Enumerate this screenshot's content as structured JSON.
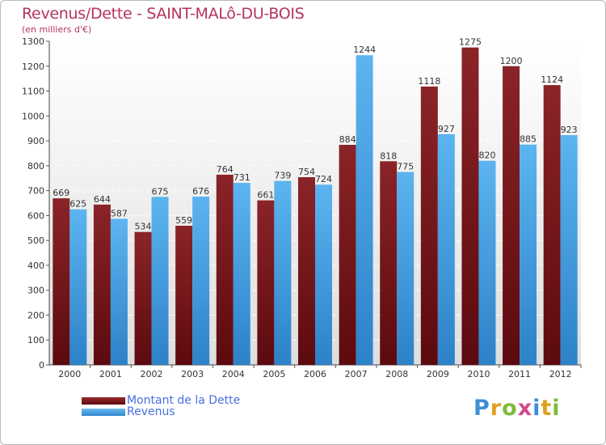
{
  "chart_data": {
    "type": "bar",
    "title": "Revenus/Dette - SAINT-MALô-DU-BOIS",
    "subtitle": "(en milliers d'€)",
    "xlabel": "",
    "ylabel": "",
    "ylim": [
      0,
      1300
    ],
    "yticks": [
      0,
      100,
      200,
      300,
      400,
      500,
      600,
      700,
      800,
      900,
      1000,
      1100,
      1200,
      1300
    ],
    "grid": true,
    "legend_position": "bottom-left",
    "categories": [
      "2000",
      "2001",
      "2002",
      "2003",
      "2004",
      "2005",
      "2006",
      "2007",
      "2008",
      "2009",
      "2010",
      "2011",
      "2012"
    ],
    "series": [
      {
        "name": "Montant de la Dette",
        "values": [
          669,
          644,
          534,
          559,
          764,
          661,
          754,
          884,
          818,
          1118,
          1275,
          1200,
          1124
        ],
        "color": "#7a1a1e"
      },
      {
        "name": "Revenus",
        "values": [
          625,
          587,
          675,
          676,
          731,
          739,
          724,
          1244,
          775,
          927,
          820,
          885,
          923
        ],
        "color": "#4ea6e6"
      }
    ]
  },
  "logo": {
    "letters": [
      "P",
      "r",
      "o",
      "x",
      "i",
      "t",
      "i"
    ]
  }
}
